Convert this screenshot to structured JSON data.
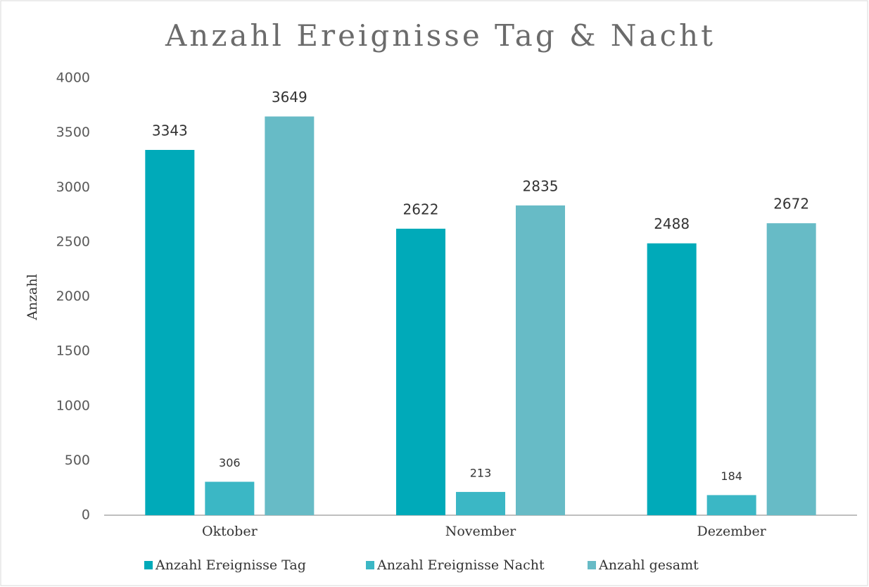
{
  "chart_data": {
    "type": "bar",
    "title": "Anzahl Ereignisse Tag & Nacht",
    "y_label": "Anzahl",
    "categories": [
      "Oktober",
      "November",
      "Dezember"
    ],
    "series": [
      {
        "name": "Anzahl Ereignisse Tag",
        "color": "#00aab9",
        "values": [
          3343,
          2622,
          2488
        ]
      },
      {
        "name": "Anzahl Ereignisse Nacht",
        "color": "#3bb7c5",
        "values": [
          306,
          213,
          184
        ]
      },
      {
        "name": "Anzahl gesamt",
        "color": "#67bbc6",
        "values": [
          3649,
          2835,
          2672
        ]
      }
    ],
    "ylim": [
      0,
      4000
    ],
    "yticks": [
      0,
      500,
      1000,
      1500,
      2000,
      2500,
      3000,
      3500,
      4000
    ],
    "grid": false,
    "legend": "bottom"
  }
}
